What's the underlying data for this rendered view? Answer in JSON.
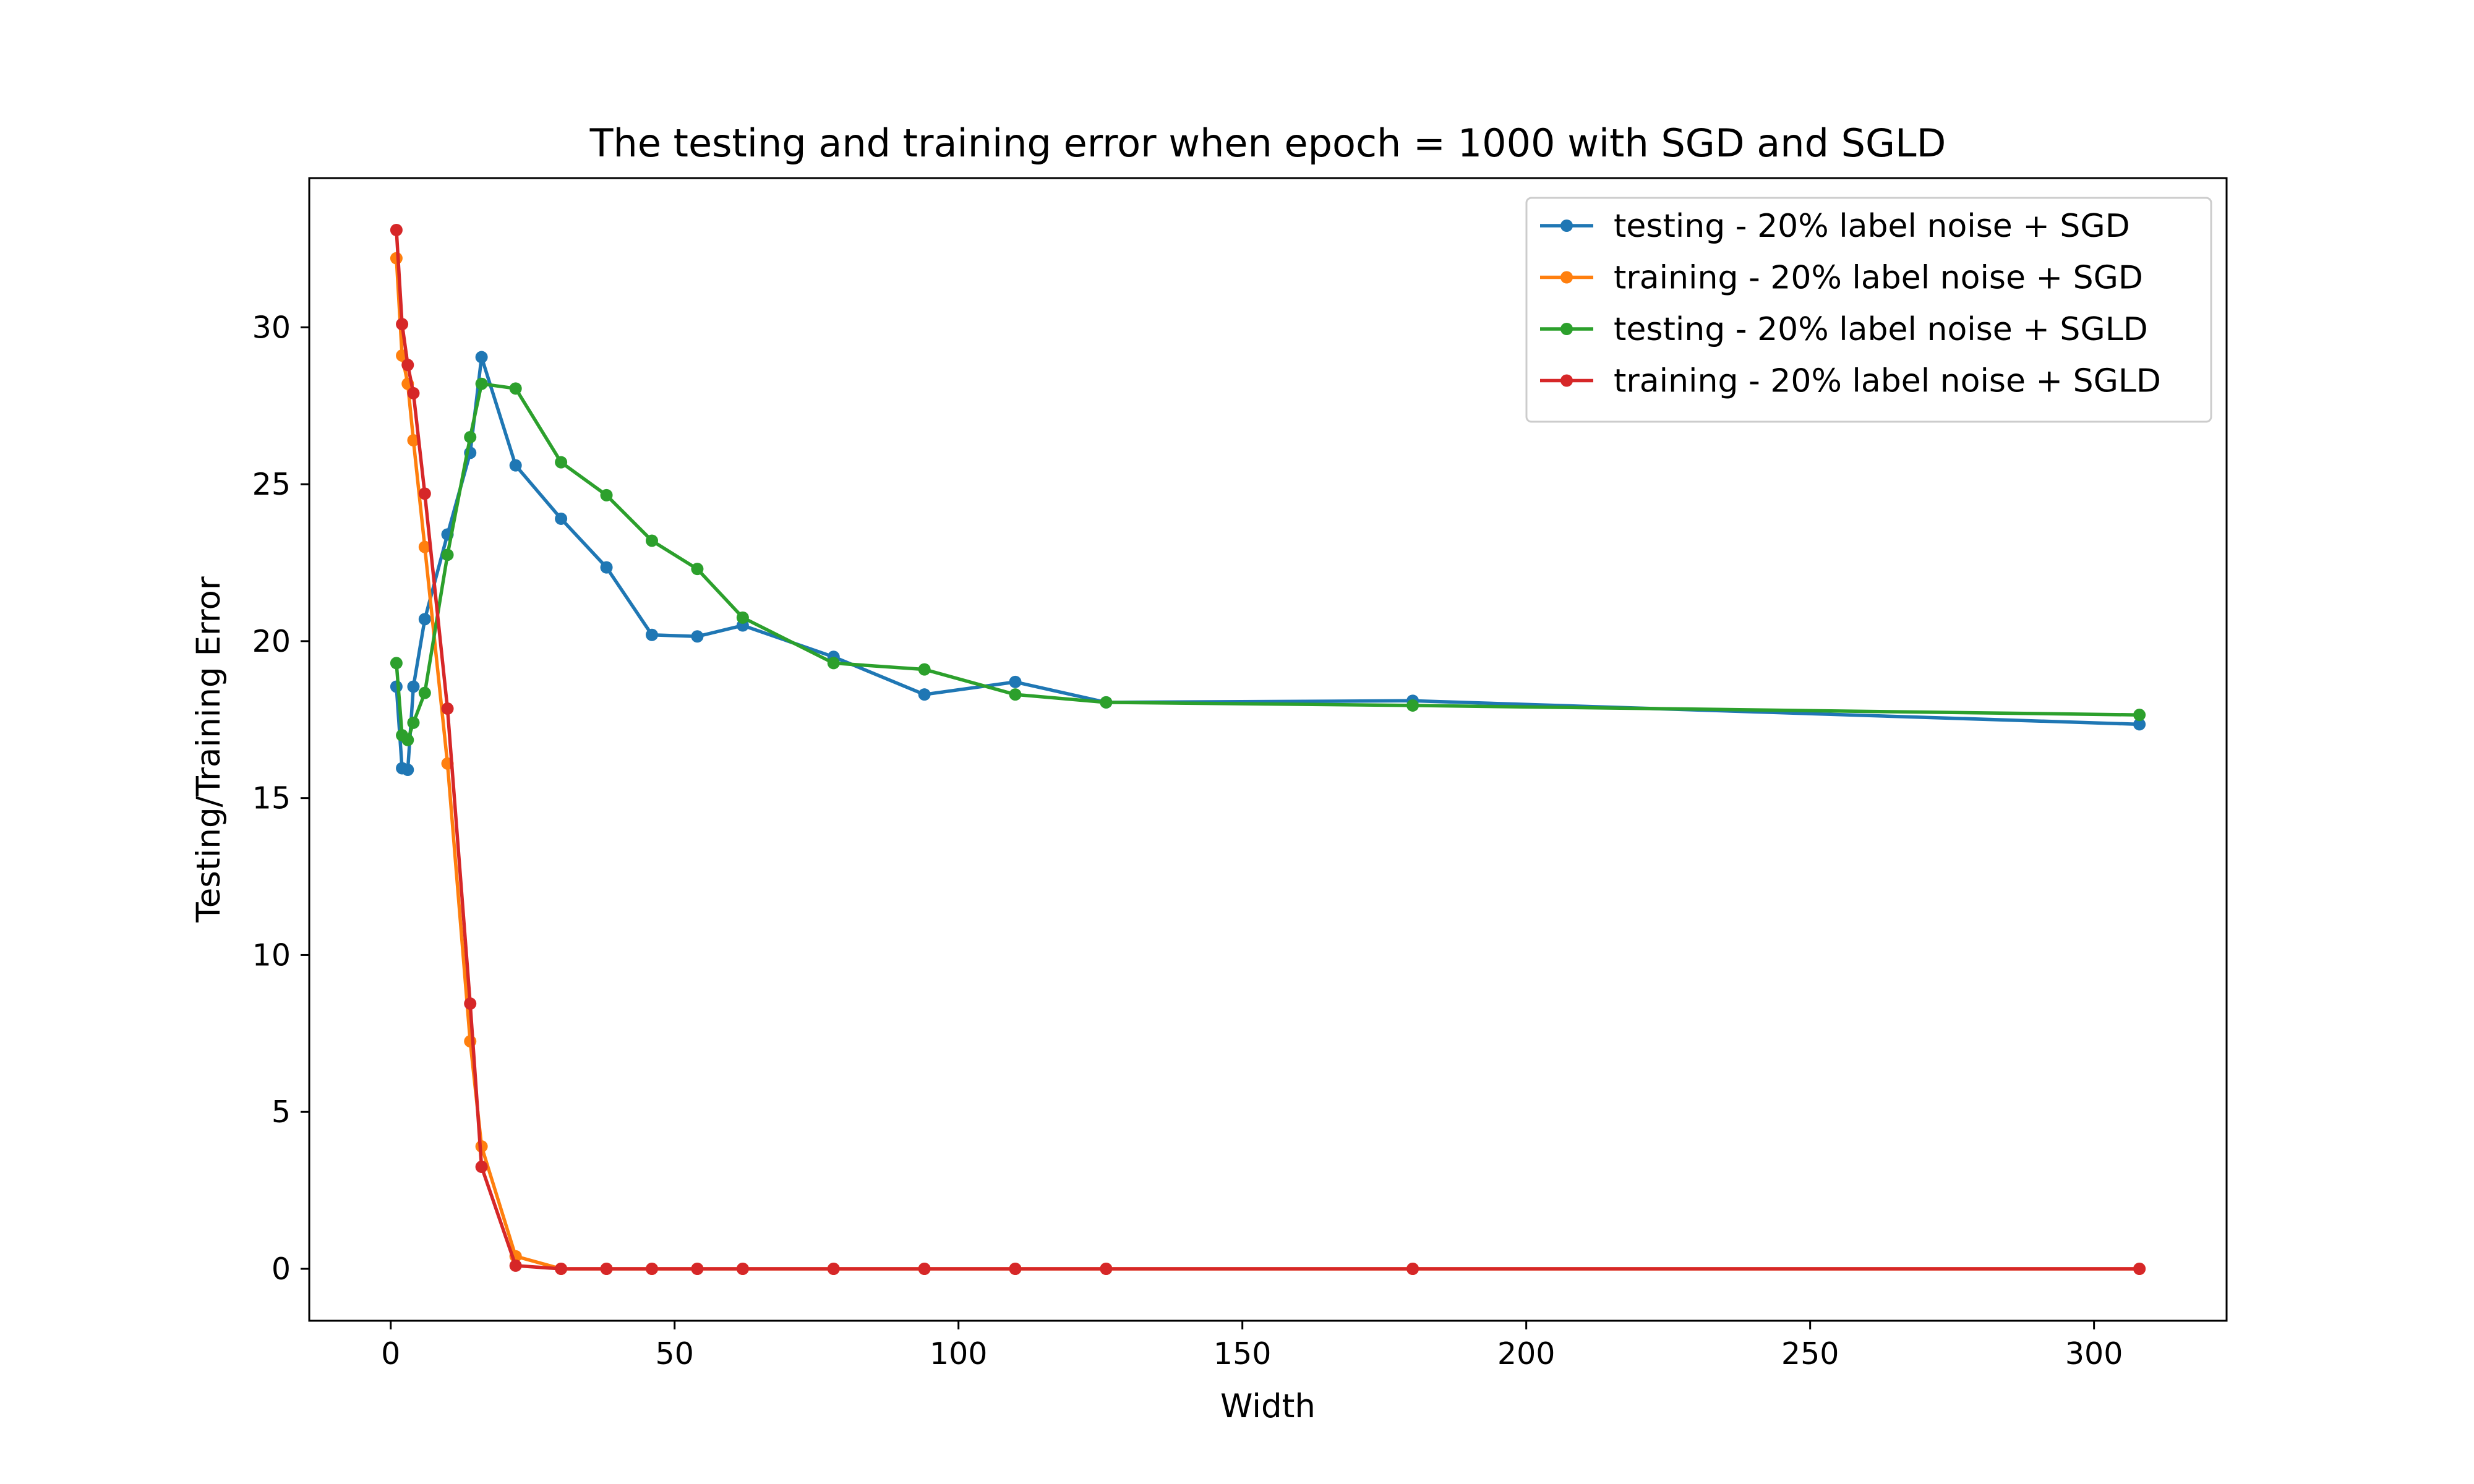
{
  "chart_data": {
    "type": "line",
    "title": "The testing and training error when epoch = 1000 with SGD and SGLD",
    "xlabel": "Width",
    "ylabel": "Testing/Training Error",
    "xlim": [
      -14.35,
      323.35
    ],
    "ylim": [
      -1.655,
      34.755
    ],
    "xticks": [
      0,
      50,
      100,
      150,
      200,
      250,
      300
    ],
    "yticks": [
      0,
      5,
      10,
      15,
      20,
      25,
      30
    ],
    "grid": false,
    "legend_position": "top-right",
    "x": [
      1,
      2,
      3,
      4,
      6,
      10,
      14,
      16,
      22,
      30,
      38,
      46,
      54,
      62,
      78,
      94,
      110,
      126,
      180,
      308
    ],
    "series": [
      {
        "name": "testing - 20% label noise + SGD",
        "color": "#1f77b4",
        "values": [
          18.55,
          15.95,
          15.9,
          18.55,
          20.7,
          23.4,
          26.0,
          29.05,
          25.6,
          23.9,
          22.35,
          20.2,
          20.15,
          20.5,
          19.5,
          18.3,
          18.7,
          18.05,
          18.1,
          17.35
        ]
      },
      {
        "name": "training - 20% label noise + SGD",
        "color": "#ff7f0e",
        "values": [
          32.2,
          29.1,
          28.2,
          26.4,
          23.0,
          16.1,
          7.25,
          3.9,
          0.4,
          0.0,
          0.0,
          0.0,
          0.0,
          0.0,
          0.0,
          0.0,
          0.0,
          0.0,
          0.0,
          0.0
        ]
      },
      {
        "name": "testing - 20% label noise + SGLD",
        "color": "#2ca02c",
        "values": [
          19.3,
          17.0,
          16.85,
          17.4,
          18.35,
          22.75,
          26.5,
          28.2,
          28.05,
          25.7,
          24.65,
          23.2,
          22.3,
          20.75,
          19.3,
          19.1,
          18.3,
          18.05,
          17.95,
          17.65
        ]
      },
      {
        "name": "training - 20% label noise + SGLD",
        "color": "#d62728",
        "values": [
          33.1,
          30.1,
          28.8,
          27.9,
          24.7,
          17.85,
          8.45,
          3.25,
          0.1,
          0.0,
          0.0,
          0.0,
          0.0,
          0.0,
          0.0,
          0.0,
          0.0,
          0.0,
          0.0,
          0.0
        ]
      }
    ]
  }
}
